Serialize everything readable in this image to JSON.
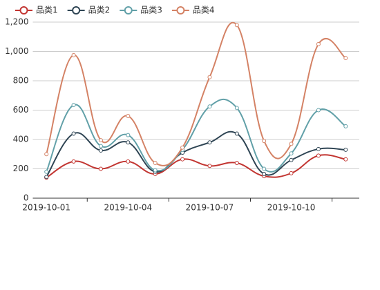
{
  "chart_data": {
    "type": "line",
    "categories": [
      "2019-10-01",
      null,
      null,
      "2019-10-04",
      null,
      null,
      "2019-10-07",
      null,
      null,
      "2019-10-10",
      null,
      null
    ],
    "series": [
      {
        "name": "品类1",
        "color": "#c23531",
        "values": [
          140,
          250,
          200,
          250,
          165,
          265,
          220,
          240,
          150,
          170,
          290,
          265
        ]
      },
      {
        "name": "品类2",
        "color": "#2f4554",
        "values": [
          145,
          440,
          325,
          380,
          180,
          310,
          380,
          440,
          165,
          260,
          335,
          330
        ]
      },
      {
        "name": "品类3",
        "color": "#61a0a8",
        "values": [
          180,
          635,
          355,
          430,
          190,
          330,
          625,
          615,
          200,
          305,
          600,
          490
        ]
      },
      {
        "name": "品类4",
        "color": "#d48265",
        "values": [
          300,
          975,
          395,
          560,
          240,
          345,
          825,
          1180,
          390,
          370,
          1050,
          955
        ]
      }
    ],
    "ylim": [
      0,
      1200
    ],
    "yticks": [
      0,
      200,
      400,
      600,
      800,
      {
        "value": 1000,
        "label": "1,000"
      },
      {
        "value": 1200,
        "label": "1,200"
      }
    ],
    "grid": true,
    "smooth": true,
    "legend": "top-left"
  }
}
